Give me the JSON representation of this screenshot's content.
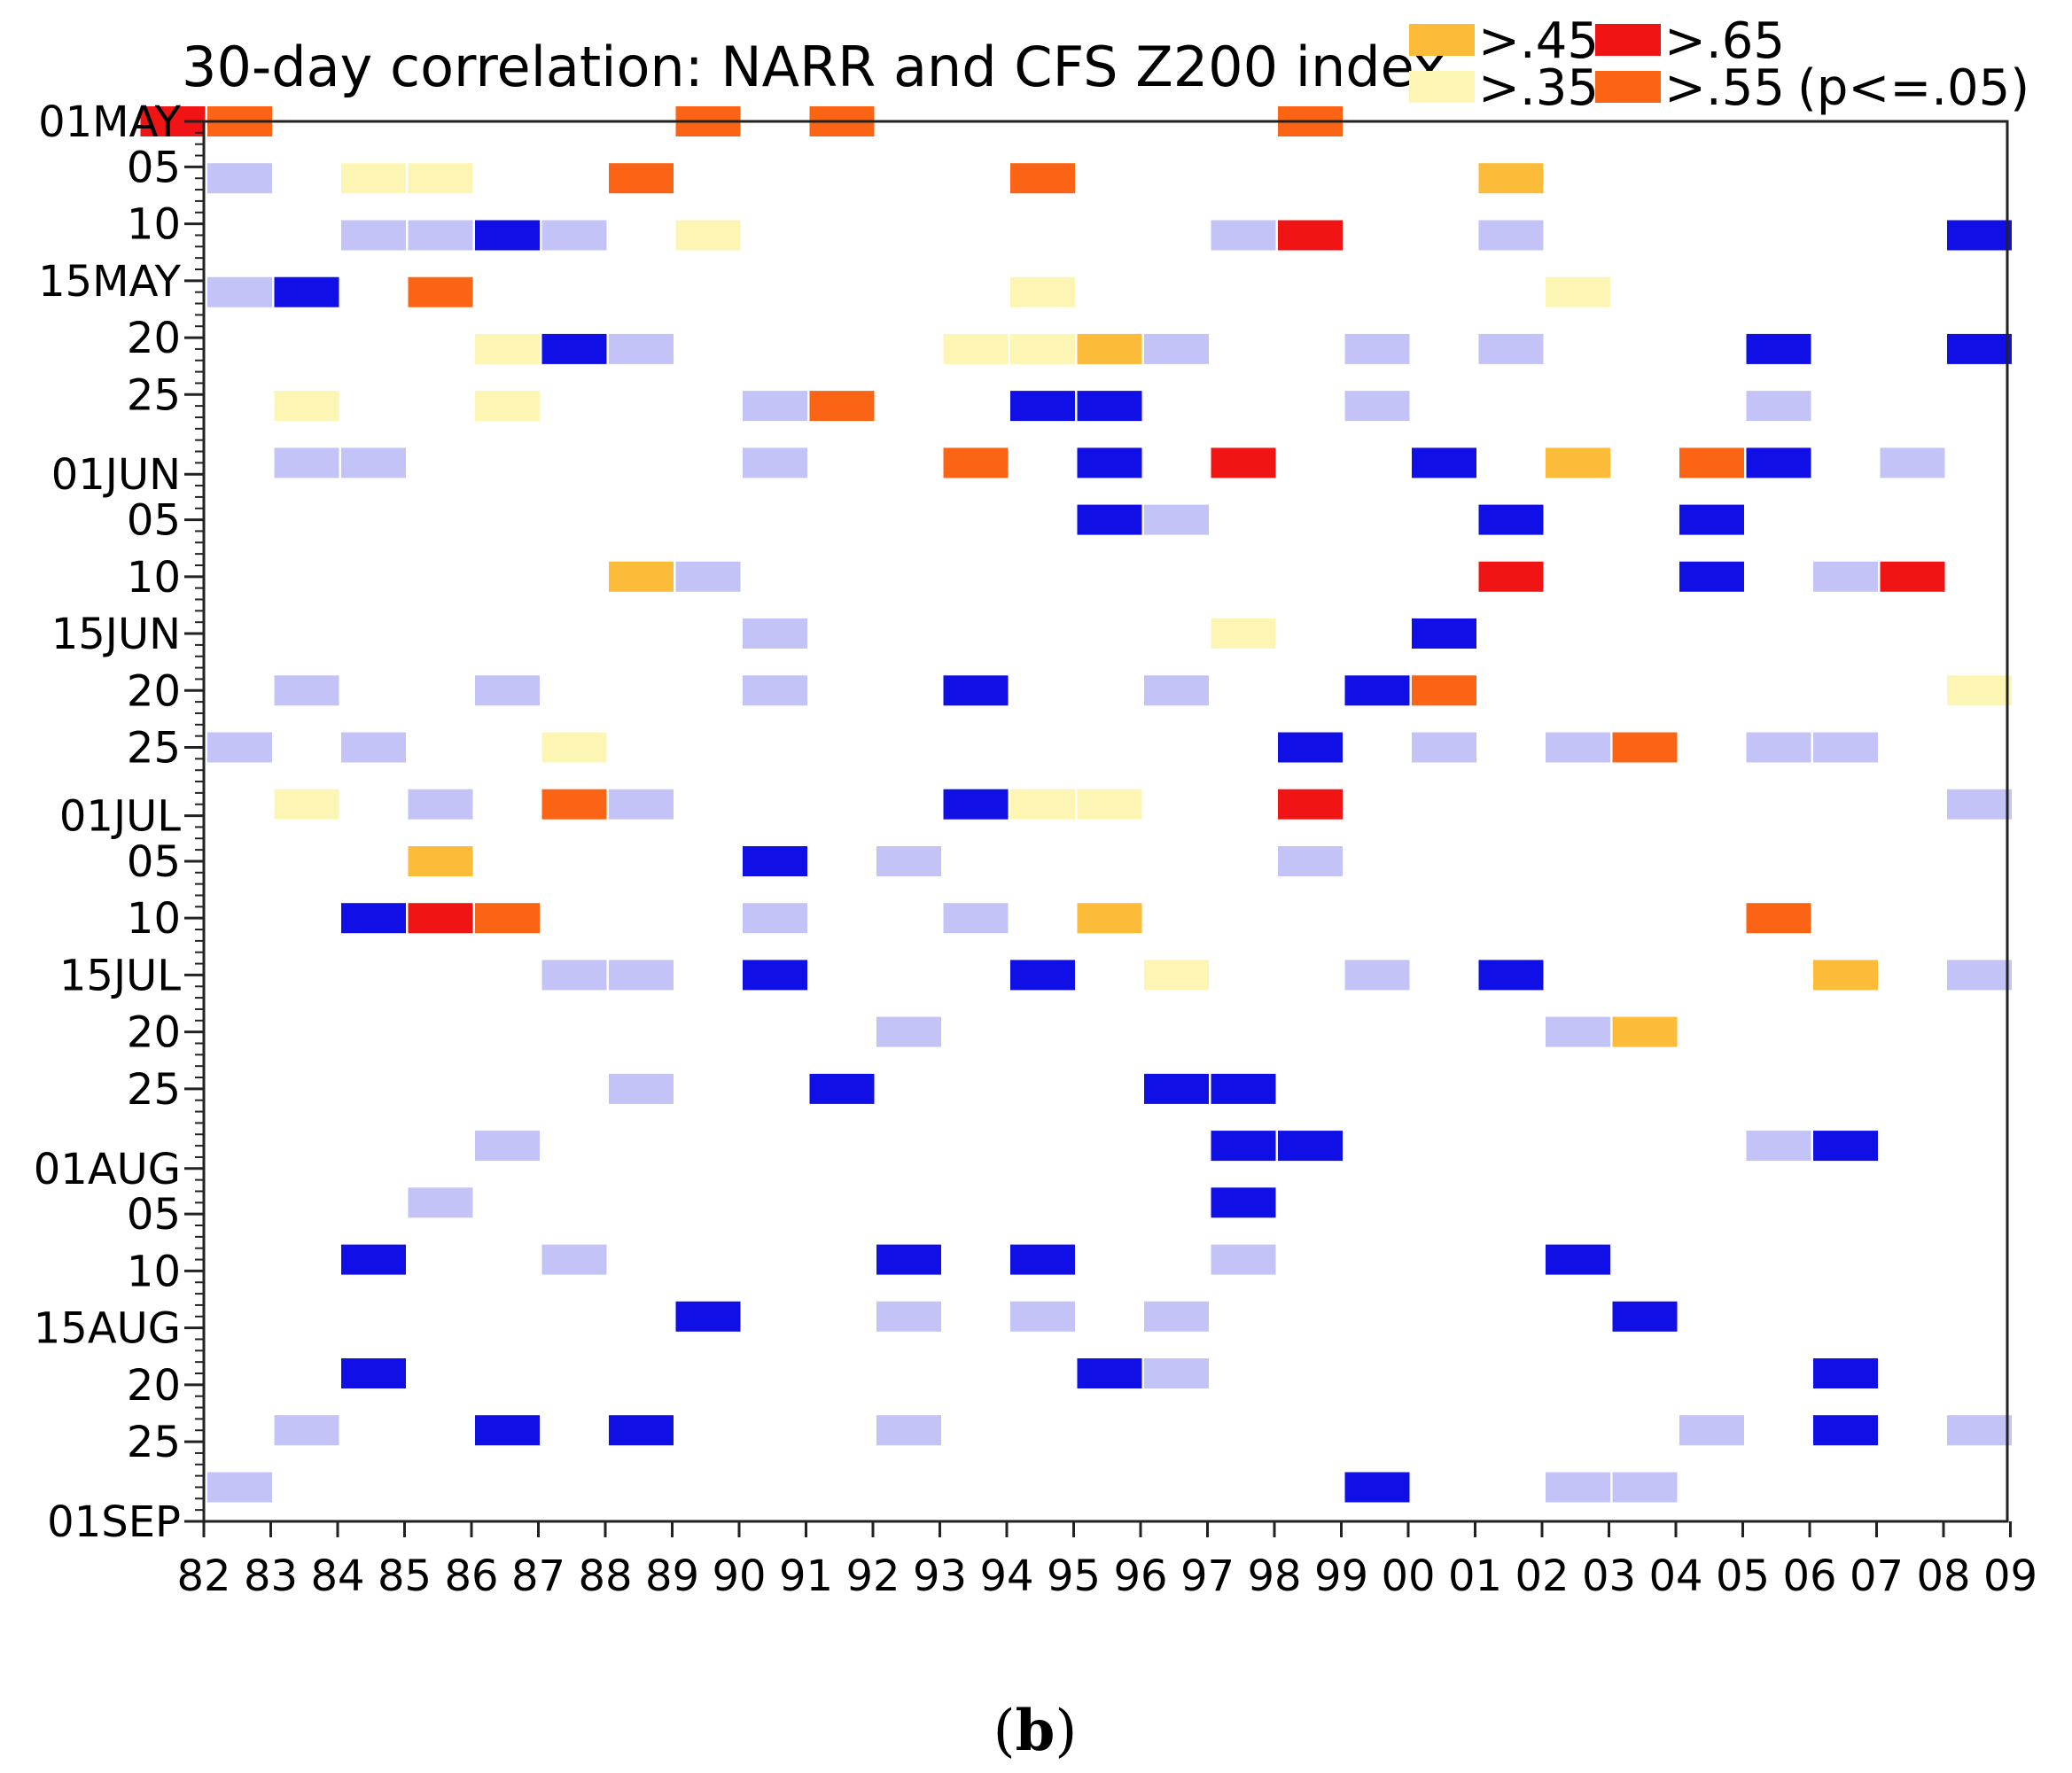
{
  "chart_data": {
    "type": "heatmap",
    "title": "30-day correlation: NARR and CFS Z200 index",
    "caption_open": "(",
    "caption_letter": "b",
    "caption_close": ")",
    "x_ticks": [
      "82",
      "83",
      "84",
      "85",
      "86",
      "87",
      "88",
      "89",
      "90",
      "91",
      "92",
      "93",
      "94",
      "95",
      "96",
      "97",
      "98",
      "99",
      "00",
      "01",
      "02",
      "03",
      "04",
      "05",
      "06",
      "07",
      "08",
      "09"
    ],
    "y_ticks": [
      {
        "label": "01MAY",
        "day": 0
      },
      {
        "label": "05",
        "day": 4
      },
      {
        "label": "10",
        "day": 9
      },
      {
        "label": "15MAY",
        "day": 14
      },
      {
        "label": "20",
        "day": 19
      },
      {
        "label": "25",
        "day": 24
      },
      {
        "label": "01JUN",
        "day": 31
      },
      {
        "label": "05",
        "day": 35
      },
      {
        "label": "10",
        "day": 40
      },
      {
        "label": "15JUN",
        "day": 45
      },
      {
        "label": "20",
        "day": 50
      },
      {
        "label": "25",
        "day": 55
      },
      {
        "label": "01JUL",
        "day": 61
      },
      {
        "label": "05",
        "day": 65
      },
      {
        "label": "10",
        "day": 70
      },
      {
        "label": "15JUL",
        "day": 75
      },
      {
        "label": "20",
        "day": 80
      },
      {
        "label": "25",
        "day": 85
      },
      {
        "label": "01AUG",
        "day": 92
      },
      {
        "label": "05",
        "day": 96
      },
      {
        "label": "10",
        "day": 101
      },
      {
        "label": "15AUG",
        "day": 106
      },
      {
        "label": "20",
        "day": 111
      },
      {
        "label": "25",
        "day": 116
      },
      {
        "label": "01SEP",
        "day": 123
      }
    ],
    "y_range_days": [
      0,
      123
    ],
    "legend": {
      "placement": "top-right",
      "entries": [
        {
          "label": ">.45",
          "color": "#fdbb3a"
        },
        {
          "label": ">.65",
          "color": "#f01414"
        },
        {
          "label": ">.35",
          "color": "#fdf5b4"
        },
        {
          "label": ">.55",
          "color": "#fb6414"
        }
      ],
      "note": "(p<=.05)"
    },
    "colors": {
      "lightblue": "#c3c3f7",
      "blue": "#0f0fe6",
      "lightyellow": "#fdf5b4",
      "yelloworange": "#fdbb3a",
      "orange": "#fb6414",
      "red": "#f01414"
    },
    "cells": [
      {
        "year": "82",
        "day": 0,
        "c": "red"
      },
      {
        "year": "83",
        "day": 0,
        "c": "orange"
      },
      {
        "year": "90",
        "day": 0,
        "c": "orange"
      },
      {
        "year": "92",
        "day": 0,
        "c": "orange"
      },
      {
        "year": "99",
        "day": 0,
        "c": "orange"
      },
      {
        "year": "83",
        "day": 5,
        "c": "lightblue"
      },
      {
        "year": "85",
        "day": 5,
        "c": "lightyellow"
      },
      {
        "year": "86",
        "day": 5,
        "c": "lightyellow"
      },
      {
        "year": "89",
        "day": 5,
        "c": "orange"
      },
      {
        "year": "95",
        "day": 5,
        "c": "orange"
      },
      {
        "year": "02",
        "day": 5,
        "c": "yelloworange"
      },
      {
        "year": "85",
        "day": 10,
        "c": "lightblue"
      },
      {
        "year": "86",
        "day": 10,
        "c": "lightblue"
      },
      {
        "year": "87",
        "day": 10,
        "c": "blue"
      },
      {
        "year": "88",
        "day": 10,
        "c": "lightblue"
      },
      {
        "year": "90",
        "day": 10,
        "c": "lightyellow"
      },
      {
        "year": "98",
        "day": 10,
        "c": "lightblue"
      },
      {
        "year": "99",
        "day": 10,
        "c": "red"
      },
      {
        "year": "02",
        "day": 10,
        "c": "lightblue"
      },
      {
        "year": "09",
        "day": 10,
        "c": "blue"
      },
      {
        "year": "83",
        "day": 15,
        "c": "lightblue"
      },
      {
        "year": "84",
        "day": 15,
        "c": "blue"
      },
      {
        "year": "86",
        "day": 15,
        "c": "orange"
      },
      {
        "year": "95",
        "day": 15,
        "c": "lightyellow"
      },
      {
        "year": "03",
        "day": 15,
        "c": "lightyellow"
      },
      {
        "year": "87",
        "day": 20,
        "c": "lightyellow"
      },
      {
        "year": "88",
        "day": 20,
        "c": "blue"
      },
      {
        "year": "89",
        "day": 20,
        "c": "lightblue"
      },
      {
        "year": "94",
        "day": 20,
        "c": "lightyellow"
      },
      {
        "year": "95",
        "day": 20,
        "c": "lightyellow"
      },
      {
        "year": "96",
        "day": 20,
        "c": "yelloworange"
      },
      {
        "year": "97",
        "day": 20,
        "c": "lightblue"
      },
      {
        "year": "00",
        "day": 20,
        "c": "lightblue"
      },
      {
        "year": "02",
        "day": 20,
        "c": "lightblue"
      },
      {
        "year": "06",
        "day": 20,
        "c": "blue"
      },
      {
        "year": "09",
        "day": 20,
        "c": "blue"
      },
      {
        "year": "84",
        "day": 25,
        "c": "lightyellow"
      },
      {
        "year": "87",
        "day": 25,
        "c": "lightyellow"
      },
      {
        "year": "91",
        "day": 25,
        "c": "lightblue"
      },
      {
        "year": "92",
        "day": 25,
        "c": "orange"
      },
      {
        "year": "95",
        "day": 25,
        "c": "blue"
      },
      {
        "year": "96",
        "day": 25,
        "c": "blue"
      },
      {
        "year": "00",
        "day": 25,
        "c": "lightblue"
      },
      {
        "year": "06",
        "day": 25,
        "c": "lightblue"
      },
      {
        "year": "84",
        "day": 30,
        "c": "lightblue"
      },
      {
        "year": "85",
        "day": 30,
        "c": "lightblue"
      },
      {
        "year": "91",
        "day": 30,
        "c": "lightblue"
      },
      {
        "year": "94",
        "day": 30,
        "c": "orange"
      },
      {
        "year": "96",
        "day": 30,
        "c": "blue"
      },
      {
        "year": "98",
        "day": 30,
        "c": "red"
      },
      {
        "year": "01",
        "day": 30,
        "c": "blue"
      },
      {
        "year": "03",
        "day": 30,
        "c": "yelloworange"
      },
      {
        "year": "05",
        "day": 30,
        "c": "orange"
      },
      {
        "year": "06",
        "day": 30,
        "c": "blue"
      },
      {
        "year": "08",
        "day": 30,
        "c": "lightblue"
      },
      {
        "year": "96",
        "day": 35,
        "c": "blue"
      },
      {
        "year": "97",
        "day": 35,
        "c": "lightblue"
      },
      {
        "year": "02",
        "day": 35,
        "c": "blue"
      },
      {
        "year": "05",
        "day": 35,
        "c": "blue"
      },
      {
        "year": "89",
        "day": 40,
        "c": "yelloworange"
      },
      {
        "year": "90",
        "day": 40,
        "c": "lightblue"
      },
      {
        "year": "02",
        "day": 40,
        "c": "red"
      },
      {
        "year": "05",
        "day": 40,
        "c": "blue"
      },
      {
        "year": "07",
        "day": 40,
        "c": "lightblue"
      },
      {
        "year": "08",
        "day": 40,
        "c": "red"
      },
      {
        "year": "91",
        "day": 45,
        "c": "lightblue"
      },
      {
        "year": "98",
        "day": 45,
        "c": "lightyellow"
      },
      {
        "year": "01",
        "day": 45,
        "c": "blue"
      },
      {
        "year": "84",
        "day": 50,
        "c": "lightblue"
      },
      {
        "year": "87",
        "day": 50,
        "c": "lightblue"
      },
      {
        "year": "91",
        "day": 50,
        "c": "lightblue"
      },
      {
        "year": "94",
        "day": 50,
        "c": "blue"
      },
      {
        "year": "97",
        "day": 50,
        "c": "lightblue"
      },
      {
        "year": "00",
        "day": 50,
        "c": "blue"
      },
      {
        "year": "01",
        "day": 50,
        "c": "orange"
      },
      {
        "year": "09",
        "day": 50,
        "c": "lightyellow"
      },
      {
        "year": "83",
        "day": 55,
        "c": "lightblue"
      },
      {
        "year": "85",
        "day": 55,
        "c": "lightblue"
      },
      {
        "year": "88",
        "day": 55,
        "c": "lightyellow"
      },
      {
        "year": "99",
        "day": 55,
        "c": "blue"
      },
      {
        "year": "01",
        "day": 55,
        "c": "lightblue"
      },
      {
        "year": "03",
        "day": 55,
        "c": "lightblue"
      },
      {
        "year": "04",
        "day": 55,
        "c": "orange"
      },
      {
        "year": "06",
        "day": 55,
        "c": "lightblue"
      },
      {
        "year": "07",
        "day": 55,
        "c": "lightblue"
      },
      {
        "year": "84",
        "day": 60,
        "c": "lightyellow"
      },
      {
        "year": "86",
        "day": 60,
        "c": "lightblue"
      },
      {
        "year": "88",
        "day": 60,
        "c": "orange"
      },
      {
        "year": "89",
        "day": 60,
        "c": "lightblue"
      },
      {
        "year": "94",
        "day": 60,
        "c": "blue"
      },
      {
        "year": "95",
        "day": 60,
        "c": "lightyellow"
      },
      {
        "year": "96",
        "day": 60,
        "c": "lightyellow"
      },
      {
        "year": "99",
        "day": 60,
        "c": "red"
      },
      {
        "year": "09",
        "day": 60,
        "c": "lightblue"
      },
      {
        "year": "86",
        "day": 65,
        "c": "yelloworange"
      },
      {
        "year": "91",
        "day": 65,
        "c": "blue"
      },
      {
        "year": "93",
        "day": 65,
        "c": "lightblue"
      },
      {
        "year": "99",
        "day": 65,
        "c": "lightblue"
      },
      {
        "year": "85",
        "day": 70,
        "c": "blue"
      },
      {
        "year": "86",
        "day": 70,
        "c": "red"
      },
      {
        "year": "87",
        "day": 70,
        "c": "orange"
      },
      {
        "year": "91",
        "day": 70,
        "c": "lightblue"
      },
      {
        "year": "94",
        "day": 70,
        "c": "lightblue"
      },
      {
        "year": "96",
        "day": 70,
        "c": "yelloworange"
      },
      {
        "year": "06",
        "day": 70,
        "c": "orange"
      },
      {
        "year": "88",
        "day": 75,
        "c": "lightblue"
      },
      {
        "year": "89",
        "day": 75,
        "c": "lightblue"
      },
      {
        "year": "91",
        "day": 75,
        "c": "blue"
      },
      {
        "year": "95",
        "day": 75,
        "c": "blue"
      },
      {
        "year": "97",
        "day": 75,
        "c": "lightyellow"
      },
      {
        "year": "00",
        "day": 75,
        "c": "lightblue"
      },
      {
        "year": "02",
        "day": 75,
        "c": "blue"
      },
      {
        "year": "07",
        "day": 75,
        "c": "yelloworange"
      },
      {
        "year": "09",
        "day": 75,
        "c": "lightblue"
      },
      {
        "year": "93",
        "day": 80,
        "c": "lightblue"
      },
      {
        "year": "03",
        "day": 80,
        "c": "lightblue"
      },
      {
        "year": "04",
        "day": 80,
        "c": "yelloworange"
      },
      {
        "year": "89",
        "day": 85,
        "c": "lightblue"
      },
      {
        "year": "92",
        "day": 85,
        "c": "blue"
      },
      {
        "year": "97",
        "day": 85,
        "c": "blue"
      },
      {
        "year": "98",
        "day": 85,
        "c": "blue"
      },
      {
        "year": "87",
        "day": 90,
        "c": "lightblue"
      },
      {
        "year": "98",
        "day": 90,
        "c": "blue"
      },
      {
        "year": "99",
        "day": 90,
        "c": "blue"
      },
      {
        "year": "06",
        "day": 90,
        "c": "lightblue"
      },
      {
        "year": "07",
        "day": 90,
        "c": "blue"
      },
      {
        "year": "86",
        "day": 95,
        "c": "lightblue"
      },
      {
        "year": "98",
        "day": 95,
        "c": "blue"
      },
      {
        "year": "85",
        "day": 100,
        "c": "blue"
      },
      {
        "year": "88",
        "day": 100,
        "c": "lightblue"
      },
      {
        "year": "93",
        "day": 100,
        "c": "blue"
      },
      {
        "year": "95",
        "day": 100,
        "c": "blue"
      },
      {
        "year": "98",
        "day": 100,
        "c": "lightblue"
      },
      {
        "year": "03",
        "day": 100,
        "c": "blue"
      },
      {
        "year": "90",
        "day": 105,
        "c": "blue"
      },
      {
        "year": "93",
        "day": 105,
        "c": "lightblue"
      },
      {
        "year": "95",
        "day": 105,
        "c": "lightblue"
      },
      {
        "year": "97",
        "day": 105,
        "c": "lightblue"
      },
      {
        "year": "04",
        "day": 105,
        "c": "blue"
      },
      {
        "year": "85",
        "day": 110,
        "c": "blue"
      },
      {
        "year": "96",
        "day": 110,
        "c": "blue"
      },
      {
        "year": "97",
        "day": 110,
        "c": "lightblue"
      },
      {
        "year": "07",
        "day": 110,
        "c": "blue"
      },
      {
        "year": "84",
        "day": 115,
        "c": "lightblue"
      },
      {
        "year": "87",
        "day": 115,
        "c": "blue"
      },
      {
        "year": "89",
        "day": 115,
        "c": "blue"
      },
      {
        "year": "93",
        "day": 115,
        "c": "lightblue"
      },
      {
        "year": "05",
        "day": 115,
        "c": "lightblue"
      },
      {
        "year": "07",
        "day": 115,
        "c": "blue"
      },
      {
        "year": "09",
        "day": 115,
        "c": "lightblue"
      },
      {
        "year": "83",
        "day": 120,
        "c": "lightblue"
      },
      {
        "year": "00",
        "day": 120,
        "c": "blue"
      },
      {
        "year": "03",
        "day": 120,
        "c": "lightblue"
      },
      {
        "year": "04",
        "day": 120,
        "c": "lightblue"
      }
    ]
  }
}
